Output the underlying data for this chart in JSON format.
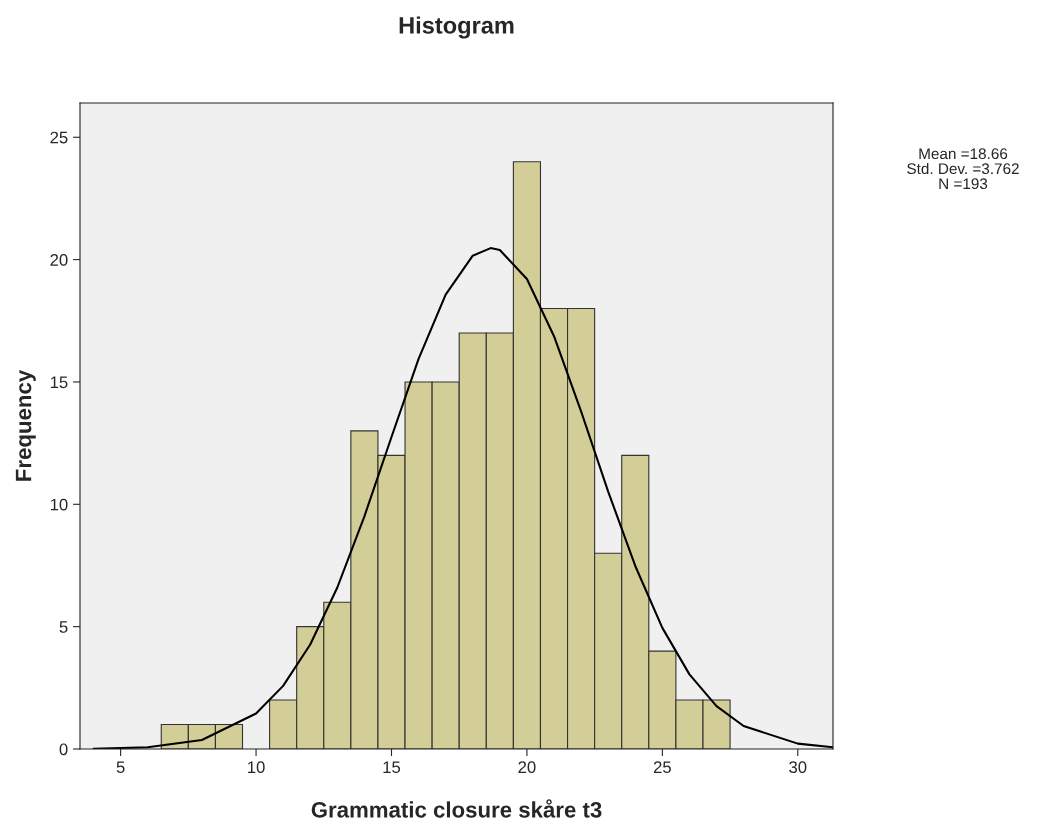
{
  "chart_data": {
    "type": "histogram",
    "title": "Histogram",
    "xlabel": "Grammatic closure skåre t3",
    "ylabel": "Frequency",
    "bins": [
      6.5,
      7.5,
      8.5,
      9.5,
      10.5,
      11.5,
      12.5,
      13.5,
      14.5,
      15.5,
      16.5,
      17.5,
      18.5,
      19.5,
      20.5,
      21.5,
      22.5,
      23.5,
      24.5,
      25.5,
      26.5,
      27.5
    ],
    "values": [
      1,
      1,
      1,
      0,
      2,
      5,
      6,
      13,
      12,
      15,
      15,
      17,
      17,
      24,
      18,
      18,
      8,
      12,
      4,
      2,
      2
    ],
    "color": "#d3ce97",
    "series": [
      {
        "type": "line",
        "color": "#000000",
        "x": [
          4,
          6,
          8,
          10,
          11,
          12,
          13,
          14,
          15,
          16,
          17,
          18,
          18.66,
          19,
          20,
          21,
          22,
          23,
          24,
          25,
          26,
          27,
          28,
          30,
          31.3
        ],
        "values": [
          0.01,
          0.07,
          0.37,
          1.45,
          2.58,
          4.27,
          6.6,
          9.51,
          12.75,
          15.94,
          18.57,
          20.16,
          20.47,
          20.39,
          19.21,
          16.87,
          13.8,
          10.52,
          7.48,
          4.95,
          3.05,
          1.75,
          0.94,
          0.22,
          0.07
        ]
      }
    ],
    "xlim": [
      3.5,
      31.3
    ],
    "ylim": [
      0,
      26.4
    ],
    "xticks": [
      5,
      10,
      15,
      20,
      25,
      30
    ],
    "yticks": [
      0,
      5,
      10,
      15,
      20,
      25
    ],
    "grid": false,
    "annotations": [
      "Mean =18.66",
      "Std. Dev. =3.762",
      "N =193"
    ]
  }
}
